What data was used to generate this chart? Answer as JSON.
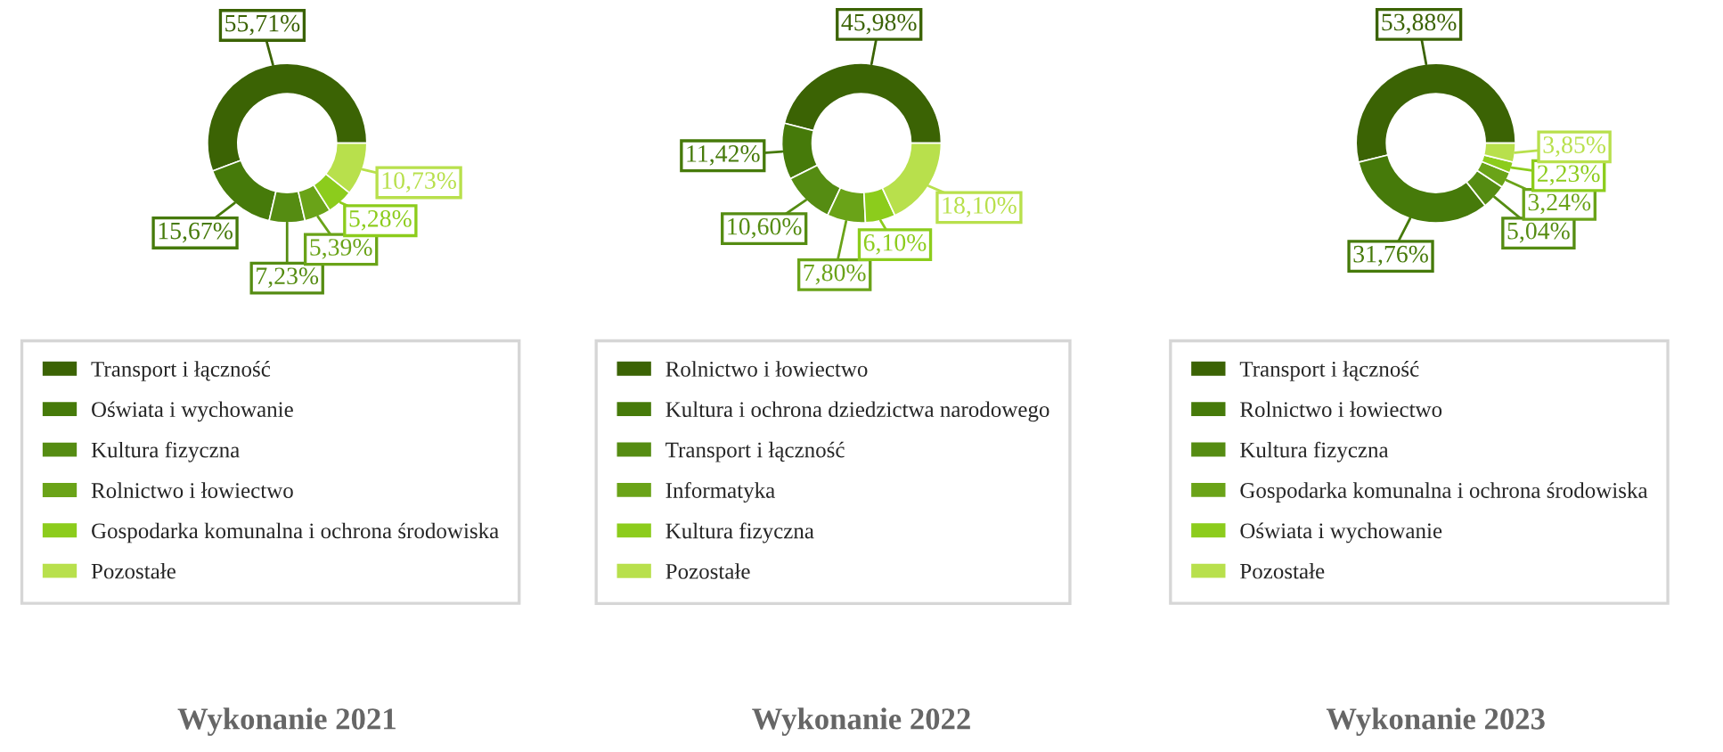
{
  "chart_data": [
    {
      "type": "donut",
      "title": "Wykonanie 2021",
      "categories": [
        "Transport i łączność",
        "Oświata i wychowanie",
        "Kultura fizyczna",
        "Rolnictwo i łowiectwo",
        "Gospodarka komunalna i ochrona środowiska",
        "Pozostałe"
      ],
      "values": [
        55.71,
        15.67,
        7.23,
        5.39,
        5.28,
        10.73
      ],
      "value_labels": [
        "55,71%",
        "15,67%",
        "7,23%",
        "5,39%",
        "5,28%",
        "10,73%"
      ],
      "colors": [
        "#3b6304",
        "#467a0a",
        "#558c12",
        "#6aa318",
        "#8ccc1c",
        "#b8e04c"
      ],
      "legend": "bottom"
    },
    {
      "type": "donut",
      "title": "Wykonanie 2022",
      "categories": [
        "Rolnictwo i łowiectwo",
        "Kultura i ochrona dziedzictwa narodowego",
        "Transport i łączność",
        "Informatyka",
        "Kultura fizyczna",
        "Pozostałe"
      ],
      "values": [
        45.98,
        11.42,
        10.6,
        7.8,
        6.1,
        18.1
      ],
      "value_labels": [
        "45,98%",
        "11,42%",
        "10,60%",
        "7,80%",
        "6,10%",
        "18,10%"
      ],
      "colors": [
        "#3b6304",
        "#467a0a",
        "#558c12",
        "#6aa318",
        "#8ccc1c",
        "#b8e04c"
      ],
      "legend": "bottom"
    },
    {
      "type": "donut",
      "title": "Wykonanie 2023",
      "categories": [
        "Transport i łączność",
        "Rolnictwo i łowiectwo",
        "Kultura fizyczna",
        "Gospodarka komunalna i ochrona środowiska",
        "Oświata i wychowanie",
        "Pozostałe"
      ],
      "values": [
        53.88,
        31.76,
        5.04,
        3.24,
        2.23,
        3.85
      ],
      "value_labels": [
        "53,88%",
        "31,76%",
        "5,04%",
        "3,24%",
        "2,23%",
        "3,85%"
      ],
      "colors": [
        "#3b6304",
        "#467a0a",
        "#558c12",
        "#6aa318",
        "#8ccc1c",
        "#b8e04c"
      ],
      "legend": "bottom"
    }
  ]
}
